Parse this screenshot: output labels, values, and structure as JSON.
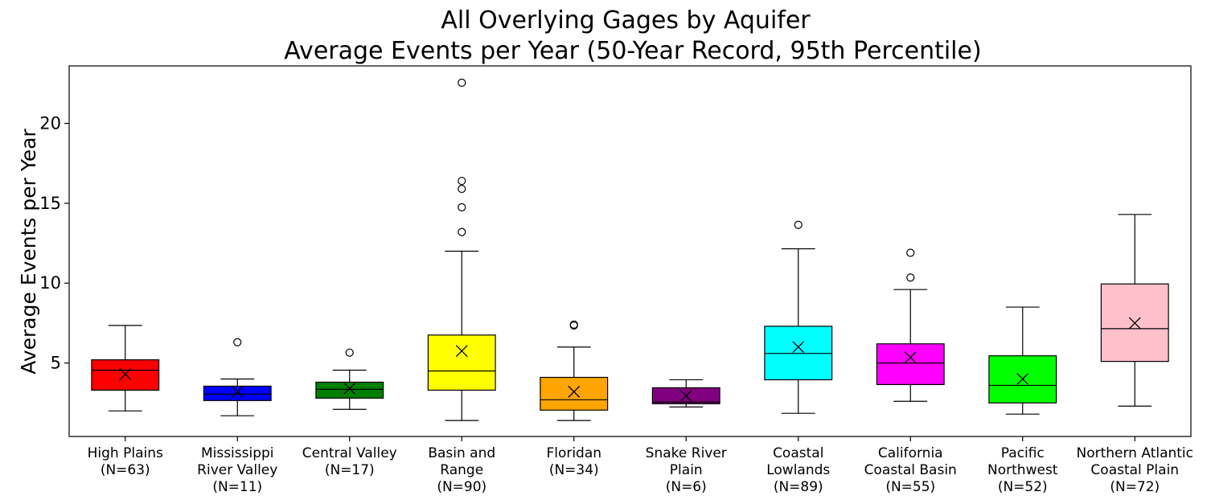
{
  "chart_data": {
    "type": "boxplot",
    "title_lines": [
      "All Overlying Gages by Aquifer",
      "Average Events per Year (50-Year Record, 95th Percentile)"
    ],
    "xlabel": "",
    "ylabel": "Average Events per Year",
    "ylim": [
      0.4,
      23.6
    ],
    "yticks": [
      5,
      10,
      15,
      20
    ],
    "grid": false,
    "mean_marker": "x",
    "categories": [
      {
        "label_lines": [
          "High Plains",
          "(N=63)"
        ],
        "color": "#ff0000",
        "whislo": 2.0,
        "q1": 3.3,
        "med": 4.55,
        "q3": 5.2,
        "whishi": 7.35,
        "mean": 4.3,
        "fliers": []
      },
      {
        "label_lines": [
          "Mississippi",
          "River Valley",
          "(N=11)"
        ],
        "color": "#0000ff",
        "whislo": 1.7,
        "q1": 2.65,
        "med": 3.05,
        "q3": 3.55,
        "whishi": 4.0,
        "mean": 3.2,
        "fliers": [
          6.3
        ]
      },
      {
        "label_lines": [
          "Central Valley",
          "(N=17)"
        ],
        "color": "#008000",
        "whislo": 2.1,
        "q1": 2.8,
        "med": 3.35,
        "q3": 3.8,
        "whishi": 4.55,
        "mean": 3.4,
        "fliers": [
          5.65
        ]
      },
      {
        "label_lines": [
          "Basin and",
          "Range",
          "(N=90)"
        ],
        "color": "#ffff00",
        "whislo": 1.4,
        "q1": 3.3,
        "med": 4.5,
        "q3": 6.75,
        "whishi": 12.0,
        "mean": 5.75,
        "fliers": [
          13.2,
          14.75,
          15.9,
          16.4,
          22.55
        ]
      },
      {
        "label_lines": [
          "Floridan",
          "(N=34)"
        ],
        "color": "#ffa500",
        "whislo": 1.4,
        "q1": 2.05,
        "med": 2.7,
        "q3": 4.1,
        "whishi": 6.0,
        "mean": 3.2,
        "fliers": [
          7.35,
          7.4
        ]
      },
      {
        "label_lines": [
          "Snake River",
          "Plain",
          "(N=6)"
        ],
        "color": "#800080",
        "whislo": 2.25,
        "q1": 2.45,
        "med": 2.55,
        "q3": 3.45,
        "whishi": 3.95,
        "mean": 2.95,
        "fliers": []
      },
      {
        "label_lines": [
          "Coastal",
          "Lowlands",
          "(N=89)"
        ],
        "color": "#00ffff",
        "whislo": 1.85,
        "q1": 3.95,
        "med": 5.6,
        "q3": 7.3,
        "whishi": 12.15,
        "mean": 6.0,
        "fliers": [
          13.65
        ]
      },
      {
        "label_lines": [
          "California",
          "Coastal Basin",
          "(N=55)"
        ],
        "color": "#ff00ff",
        "whislo": 2.6,
        "q1": 3.65,
        "med": 5.0,
        "q3": 6.2,
        "whishi": 9.6,
        "mean": 5.35,
        "fliers": [
          10.35,
          11.9
        ]
      },
      {
        "label_lines": [
          "Pacific",
          "Northwest",
          "(N=52)"
        ],
        "color": "#00ff00",
        "whislo": 1.8,
        "q1": 2.5,
        "med": 3.6,
        "q3": 5.45,
        "whishi": 8.5,
        "mean": 4.0,
        "fliers": []
      },
      {
        "label_lines": [
          "Northern Atlantic",
          "Coastal Plain",
          "(N=72)"
        ],
        "color": "#ffc0cb",
        "whislo": 2.3,
        "q1": 5.1,
        "med": 7.15,
        "q3": 9.95,
        "whishi": 14.3,
        "mean": 7.5,
        "fliers": []
      }
    ]
  }
}
